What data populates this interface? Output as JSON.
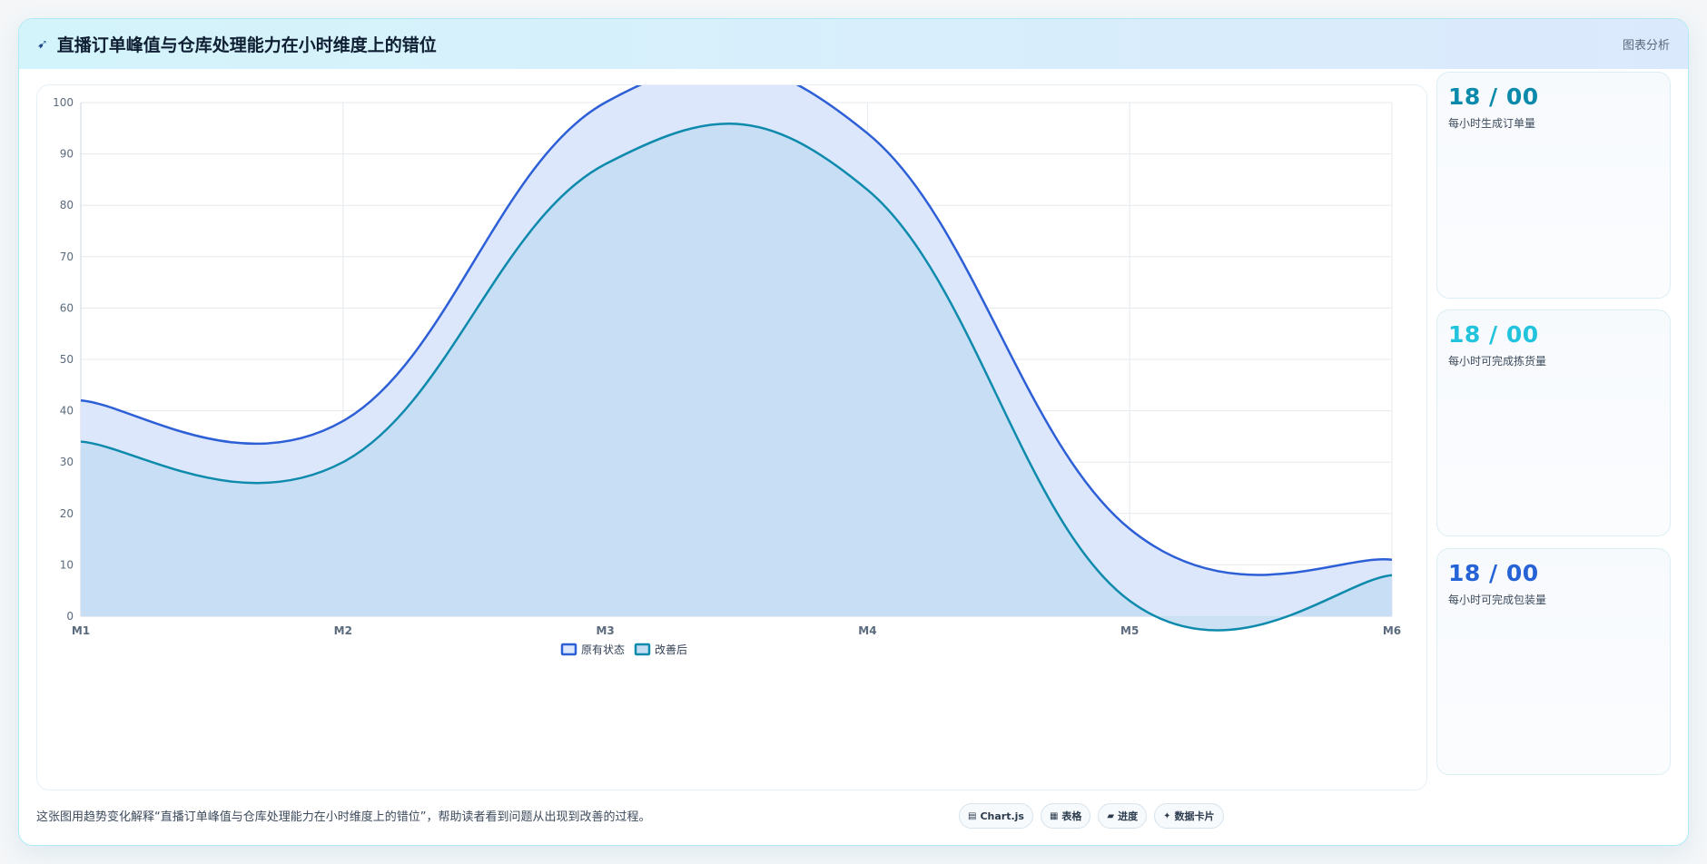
{
  "header": {
    "title": "直播订单峰值与仓库处理能力在小时维度上的错位",
    "title_icon": "send-icon",
    "tag": "图表分析"
  },
  "chart_data": {
    "type": "area",
    "categories": [
      "M1",
      "M2",
      "M3",
      "M4",
      "M5",
      "M6"
    ],
    "series": [
      {
        "name": "原有状态",
        "values": [
          42,
          38,
          100,
          94,
          17,
          11
        ],
        "color": "#2d5fd6",
        "fill": "#dde7fb"
      },
      {
        "name": "改善后",
        "values": [
          34,
          30,
          88,
          83,
          3,
          8
        ],
        "color": "#0e8aad",
        "fill": "#c3dcf2"
      }
    ],
    "ylim": [
      0,
      100
    ],
    "yticks": [
      0,
      10,
      20,
      30,
      40,
      50,
      60,
      70,
      80,
      90,
      100
    ],
    "grid": true,
    "legend": "bottom"
  },
  "stats": [
    {
      "value": "18 / 00",
      "label": "每小时生成订单量",
      "color": "#0c8aab"
    },
    {
      "value": "18 / 00",
      "label": "每小时可完成拣货量",
      "color": "#22c3dc"
    },
    {
      "value": "18 / 00",
      "label": "每小时可完成包装量",
      "color": "#2563d6"
    }
  ],
  "footer": {
    "description": "这张图用趋势变化解释“直播订单峰值与仓库处理能力在小时维度上的错位”，帮助读者看到问题从出现到改善的过程。",
    "chips": [
      {
        "icon": "chart-icon",
        "label": "Chart.js"
      },
      {
        "icon": "table-icon",
        "label": "表格"
      },
      {
        "icon": "progress-icon",
        "label": "进度"
      },
      {
        "icon": "card-icon",
        "label": "数据卡片"
      }
    ]
  }
}
